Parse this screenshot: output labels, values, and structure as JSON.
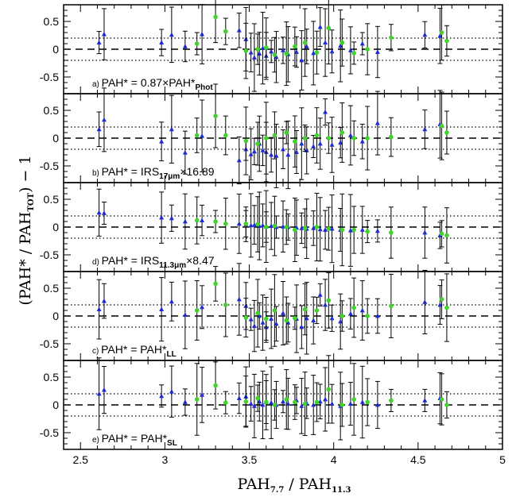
{
  "chart_data": {
    "type": "scatter",
    "xlabel": "PAH7.7 / PAH11.3",
    "xlabel_main": "PAH",
    "xlabel_sub1": "7.7",
    "xlabel_sep": " / PAH",
    "xlabel_sub2": "11.3",
    "ylabel_prefix": "(PAH* / PAH",
    "ylabel_sub": "TOT",
    "ylabel_suffix": ") − 1",
    "xlim": [
      2.4,
      5.0
    ],
    "ylim": [
      -0.8,
      0.8
    ],
    "x_ticks": [
      "2.5",
      "3",
      "3.5",
      "4",
      "4.5",
      "5"
    ],
    "y_ticks": [
      "0.5",
      "0",
      "-0.5"
    ],
    "reference_lines": {
      "dashed": 0,
      "dotted": [
        0.2,
        -0.2
      ]
    },
    "colors": {
      "blue": "#1f2bd0",
      "green": "#3fd42a",
      "errorbar": "#000000"
    },
    "panels": [
      {
        "letter": "a)",
        "label_main": "PAH* = 0.87×PAH*",
        "label_sub": "Phot",
        "blue": [
          [
            2.61,
            0.12
          ],
          [
            2.64,
            0.27
          ],
          [
            2.98,
            0.12
          ],
          [
            3.04,
            0.26
          ],
          [
            3.12,
            0.05
          ],
          [
            3.22,
            0.27
          ],
          [
            3.44,
            0.34
          ],
          [
            3.48,
            0.18
          ],
          [
            3.51,
            -0.06
          ],
          [
            3.53,
            -0.15
          ],
          [
            3.56,
            -0.08
          ],
          [
            3.58,
            0.02
          ],
          [
            3.6,
            -0.12
          ],
          [
            3.63,
            -0.04
          ],
          [
            3.66,
            -0.14
          ],
          [
            3.7,
            -0.02
          ],
          [
            3.73,
            -0.09
          ],
          [
            3.78,
            -0.05
          ],
          [
            3.81,
            -0.2
          ],
          [
            3.84,
            0.05
          ],
          [
            3.88,
            -0.07
          ],
          [
            3.92,
            0.4
          ],
          [
            3.95,
            0.12
          ],
          [
            3.99,
            -0.04
          ],
          [
            4.04,
            0.06
          ],
          [
            4.1,
            -0.02
          ],
          [
            4.17,
            0.1
          ],
          [
            4.26,
            -0.05
          ],
          [
            4.54,
            0.26
          ],
          [
            4.63,
            0.24
          ]
        ],
        "green": [
          [
            3.19,
            0.1
          ],
          [
            3.3,
            0.58
          ],
          [
            3.36,
            0.32
          ],
          [
            3.48,
            -0.03
          ],
          [
            3.55,
            0.0
          ],
          [
            3.6,
            0.03
          ],
          [
            3.65,
            -0.1
          ],
          [
            3.72,
            -0.08
          ],
          [
            3.77,
            0.05
          ],
          [
            3.83,
            0.12
          ],
          [
            3.9,
            -0.06
          ],
          [
            3.97,
            0.38
          ],
          [
            4.05,
            0.12
          ],
          [
            4.12,
            -0.07
          ],
          [
            4.2,
            0.0
          ],
          [
            4.34,
            0.21
          ],
          [
            4.64,
            0.3
          ],
          [
            4.67,
            0.15
          ]
        ]
      },
      {
        "letter": "b)",
        "label_main": "PAH* = IRS",
        "label_sub": "17μm",
        "label_suffix": "×16.89",
        "blue": [
          [
            2.61,
            0.16
          ],
          [
            2.64,
            0.33
          ],
          [
            2.98,
            -0.06
          ],
          [
            3.04,
            0.16
          ],
          [
            3.12,
            -0.26
          ],
          [
            3.22,
            0.04
          ],
          [
            3.44,
            -0.4
          ],
          [
            3.48,
            -0.2
          ],
          [
            3.51,
            -0.29
          ],
          [
            3.53,
            -0.24
          ],
          [
            3.56,
            -0.1
          ],
          [
            3.58,
            -0.22
          ],
          [
            3.6,
            -0.25
          ],
          [
            3.63,
            -0.3
          ],
          [
            3.66,
            -0.32
          ],
          [
            3.7,
            -0.2
          ],
          [
            3.73,
            -0.3
          ],
          [
            3.78,
            -0.25
          ],
          [
            3.81,
            -0.1
          ],
          [
            3.84,
            -0.22
          ],
          [
            3.88,
            -0.15
          ],
          [
            3.92,
            -0.1
          ],
          [
            3.95,
            0.47
          ],
          [
            3.99,
            -0.12
          ],
          [
            4.04,
            -0.08
          ],
          [
            4.1,
            0.05
          ],
          [
            4.17,
            -0.06
          ],
          [
            4.26,
            0.27
          ],
          [
            4.54,
            0.16
          ],
          [
            4.63,
            0.25
          ]
        ],
        "green": [
          [
            3.19,
            0.05
          ],
          [
            3.3,
            0.4
          ],
          [
            3.36,
            0.05
          ],
          [
            3.48,
            -0.05
          ],
          [
            3.55,
            -0.1
          ],
          [
            3.6,
            0.0
          ],
          [
            3.65,
            0.05
          ],
          [
            3.72,
            0.1
          ],
          [
            3.77,
            -0.06
          ],
          [
            3.83,
            0.0
          ],
          [
            3.9,
            0.05
          ],
          [
            3.97,
            0.0
          ],
          [
            4.05,
            0.1
          ],
          [
            4.12,
            0.0
          ],
          [
            4.2,
            0.0
          ],
          [
            4.34,
            0.02
          ],
          [
            4.64,
            0.22
          ],
          [
            4.67,
            0.1
          ]
        ]
      },
      {
        "letter": "d)",
        "label_main": "PAH* = IRS",
        "label_sub": "11.3μm",
        "label_suffix": "×8.47",
        "blue": [
          [
            2.61,
            0.26
          ],
          [
            2.64,
            0.25
          ],
          [
            2.98,
            0.17
          ],
          [
            3.04,
            0.16
          ],
          [
            3.12,
            0.1
          ],
          [
            3.22,
            0.12
          ],
          [
            3.44,
            0.06
          ],
          [
            3.48,
            0.05
          ],
          [
            3.51,
            0.03
          ],
          [
            3.53,
            0.04
          ],
          [
            3.56,
            0.02
          ],
          [
            3.58,
            0.03
          ],
          [
            3.6,
            0.01
          ],
          [
            3.63,
            0.02
          ],
          [
            3.66,
            0.0
          ],
          [
            3.7,
            0.01
          ],
          [
            3.73,
            0.0
          ],
          [
            3.78,
            -0.01
          ],
          [
            3.81,
            -0.02
          ],
          [
            3.84,
            -0.03
          ],
          [
            3.88,
            -0.02
          ],
          [
            3.92,
            -0.04
          ],
          [
            3.95,
            -0.05
          ],
          [
            3.99,
            -0.03
          ],
          [
            4.04,
            -0.05
          ],
          [
            4.1,
            -0.06
          ],
          [
            4.17,
            -0.05
          ],
          [
            4.26,
            -0.07
          ],
          [
            4.54,
            -0.1
          ],
          [
            4.63,
            -0.15
          ]
        ],
        "green": [
          [
            3.19,
            0.12
          ],
          [
            3.3,
            0.1
          ],
          [
            3.36,
            0.06
          ],
          [
            3.48,
            0.06
          ],
          [
            3.55,
            0.05
          ],
          [
            3.6,
            0.0
          ],
          [
            3.65,
            0.02
          ],
          [
            3.72,
            0.0
          ],
          [
            3.77,
            -0.05
          ],
          [
            3.83,
            -0.02
          ],
          [
            3.9,
            0.0
          ],
          [
            3.97,
            -0.03
          ],
          [
            4.05,
            -0.05
          ],
          [
            4.12,
            -0.05
          ],
          [
            4.2,
            -0.08
          ],
          [
            4.34,
            -0.1
          ],
          [
            4.64,
            -0.12
          ],
          [
            4.67,
            -0.15
          ]
        ]
      },
      {
        "letter": "c)",
        "label_main": "PAH* = PAH*",
        "label_sub": "LL",
        "blue": [
          [
            2.61,
            0.12
          ],
          [
            2.64,
            0.27
          ],
          [
            2.98,
            0.12
          ],
          [
            3.04,
            0.26
          ],
          [
            3.12,
            0.02
          ],
          [
            3.22,
            0.16
          ],
          [
            3.44,
            0.3
          ],
          [
            3.48,
            0.18
          ],
          [
            3.51,
            -0.06
          ],
          [
            3.53,
            -0.18
          ],
          [
            3.56,
            0.0
          ],
          [
            3.58,
            -0.12
          ],
          [
            3.6,
            -0.2
          ],
          [
            3.63,
            -0.05
          ],
          [
            3.66,
            -0.14
          ],
          [
            3.7,
            0.05
          ],
          [
            3.73,
            -0.12
          ],
          [
            3.78,
            -0.05
          ],
          [
            3.81,
            -0.2
          ],
          [
            3.84,
            -0.04
          ],
          [
            3.88,
            -0.08
          ],
          [
            3.92,
            0.38
          ],
          [
            3.95,
            0.2
          ],
          [
            3.99,
            -0.04
          ],
          [
            4.04,
            -0.1
          ],
          [
            4.1,
            0.04
          ],
          [
            4.17,
            0.1
          ],
          [
            4.26,
            0.0
          ],
          [
            4.54,
            0.25
          ],
          [
            4.63,
            0.2
          ]
        ],
        "green": [
          [
            3.19,
            0.1
          ],
          [
            3.3,
            0.58
          ],
          [
            3.36,
            0.2
          ],
          [
            3.48,
            -0.03
          ],
          [
            3.55,
            0.05
          ],
          [
            3.6,
            -0.05
          ],
          [
            3.65,
            0.1
          ],
          [
            3.72,
            -0.08
          ],
          [
            3.77,
            -0.04
          ],
          [
            3.83,
            0.12
          ],
          [
            3.9,
            0.1
          ],
          [
            3.97,
            0.28
          ],
          [
            4.05,
            0.0
          ],
          [
            4.12,
            0.15
          ],
          [
            4.2,
            0.0
          ],
          [
            4.34,
            0.18
          ],
          [
            4.64,
            0.3
          ],
          [
            4.67,
            0.15
          ]
        ]
      },
      {
        "letter": "e)",
        "label_main": "PAH* = PAH*",
        "label_sub": "SL",
        "blue": [
          [
            2.61,
            0.2
          ],
          [
            2.64,
            0.27
          ],
          [
            2.98,
            0.16
          ],
          [
            3.04,
            0.24
          ],
          [
            3.12,
            0.05
          ],
          [
            3.22,
            0.18
          ],
          [
            3.44,
            0.12
          ],
          [
            3.48,
            0.15
          ],
          [
            3.51,
            0.02
          ],
          [
            3.53,
            -0.02
          ],
          [
            3.56,
            0.06
          ],
          [
            3.58,
            0.0
          ],
          [
            3.6,
            0.05
          ],
          [
            3.63,
            0.04
          ],
          [
            3.66,
            0.0
          ],
          [
            3.7,
            0.06
          ],
          [
            3.73,
            0.02
          ],
          [
            3.78,
            0.08
          ],
          [
            3.81,
            -0.02
          ],
          [
            3.84,
            0.03
          ],
          [
            3.88,
            0.0
          ],
          [
            3.92,
            0.06
          ],
          [
            3.95,
            0.1
          ],
          [
            3.99,
            0.02
          ],
          [
            4.04,
            -0.02
          ],
          [
            4.1,
            0.02
          ],
          [
            4.17,
            0.05
          ],
          [
            4.26,
            0.0
          ],
          [
            4.54,
            0.08
          ],
          [
            4.63,
            0.12
          ]
        ],
        "green": [
          [
            3.19,
            0.1
          ],
          [
            3.3,
            0.35
          ],
          [
            3.36,
            0.04
          ],
          [
            3.48,
            0.06
          ],
          [
            3.55,
            0.12
          ],
          [
            3.6,
            0.05
          ],
          [
            3.65,
            0.0
          ],
          [
            3.72,
            0.1
          ],
          [
            3.77,
            0.05
          ],
          [
            3.83,
            0.02
          ],
          [
            3.9,
            0.05
          ],
          [
            3.97,
            0.28
          ],
          [
            4.05,
            0.0
          ],
          [
            4.12,
            0.1
          ],
          [
            4.2,
            0.05
          ],
          [
            4.34,
            0.08
          ],
          [
            4.64,
            0.1
          ],
          [
            4.67,
            0.0
          ]
        ]
      }
    ]
  }
}
